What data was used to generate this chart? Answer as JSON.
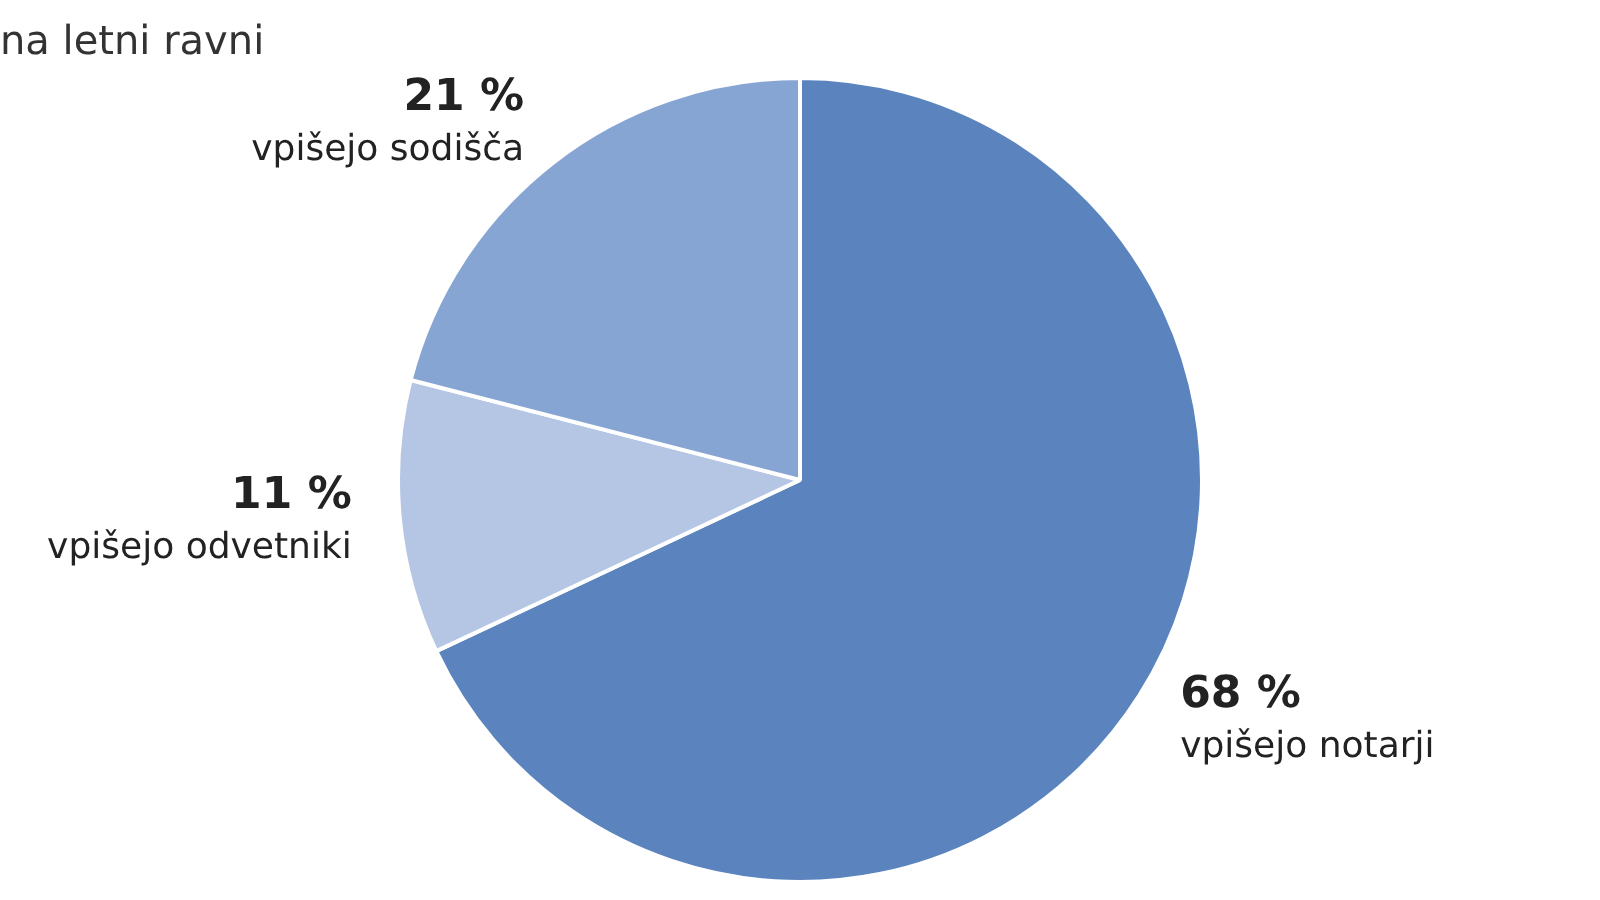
{
  "chart_data": {
    "type": "pie",
    "title": "na letni ravni",
    "categories": [
      "vpišejo notarji",
      "vpišejo odvetniki",
      "vpišejo sodišča"
    ],
    "values": [
      68,
      11,
      21
    ],
    "colors": [
      "#5b84be",
      "#b4c6e4",
      "#87a5d2"
    ],
    "value_labels": [
      "68 %",
      "11 %",
      "21 %"
    ],
    "legend": false
  }
}
